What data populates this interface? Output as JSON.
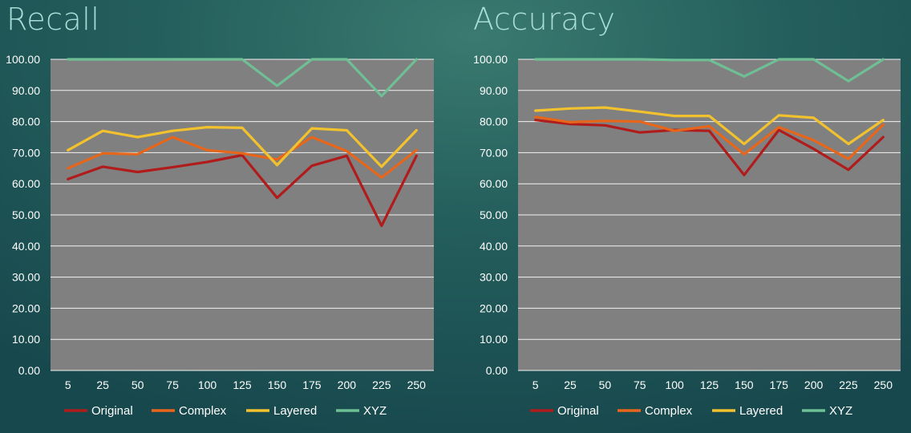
{
  "chart_data": [
    {
      "type": "line",
      "title": "Recall",
      "categories": [
        "5",
        "25",
        "50",
        "75",
        "100",
        "125",
        "150",
        "175",
        "200",
        "225",
        "250"
      ],
      "ylim": [
        0,
        100
      ],
      "yticks": [
        "0.00",
        "10.00",
        "20.00",
        "30.00",
        "40.00",
        "50.00",
        "60.00",
        "70.00",
        "80.00",
        "90.00",
        "100.00"
      ],
      "grid": true,
      "legend": "bottom",
      "series": [
        {
          "name": "Original",
          "color": "#b01c1c",
          "values": [
            61.5,
            65.5,
            63.8,
            65.3,
            67.0,
            69.2,
            55.5,
            65.8,
            69.0,
            46.5,
            69.0
          ]
        },
        {
          "name": "Complex",
          "color": "#e8661a",
          "values": [
            65.0,
            69.8,
            69.5,
            75.0,
            70.8,
            69.8,
            67.8,
            75.0,
            70.5,
            62.0,
            70.8
          ]
        },
        {
          "name": "Layered",
          "color": "#f2c12e",
          "values": [
            70.8,
            77.0,
            75.0,
            77.0,
            78.2,
            78.0,
            66.0,
            77.8,
            77.2,
            65.5,
            77.2
          ]
        },
        {
          "name": "XYZ",
          "color": "#6fbf95",
          "values": [
            100,
            100,
            100,
            100,
            100,
            100,
            91.5,
            100,
            100,
            88.2,
            100
          ]
        }
      ]
    },
    {
      "type": "line",
      "title": "Accuracy",
      "categories": [
        "5",
        "25",
        "50",
        "75",
        "100",
        "125",
        "150",
        "175",
        "200",
        "225",
        "250"
      ],
      "ylim": [
        0,
        100
      ],
      "yticks": [
        "0.00",
        "10.00",
        "20.00",
        "30.00",
        "40.00",
        "50.00",
        "60.00",
        "70.00",
        "80.00",
        "90.00",
        "100.00"
      ],
      "grid": true,
      "legend": "bottom",
      "series": [
        {
          "name": "Original",
          "color": "#b01c1c",
          "values": [
            80.5,
            79.2,
            78.8,
            76.5,
            77.3,
            77.0,
            62.8,
            77.3,
            71.2,
            64.5,
            75.0
          ]
        },
        {
          "name": "Complex",
          "color": "#e8661a",
          "values": [
            81.5,
            79.8,
            80.2,
            80.0,
            77.0,
            78.5,
            69.5,
            78.2,
            74.0,
            68.0,
            79.0
          ]
        },
        {
          "name": "Layered",
          "color": "#f2c12e",
          "values": [
            83.5,
            84.2,
            84.5,
            83.2,
            81.8,
            81.8,
            72.8,
            82.0,
            81.2,
            72.8,
            80.5
          ]
        },
        {
          "name": "XYZ",
          "color": "#6fbf95",
          "values": [
            100,
            100,
            100,
            100,
            99.8,
            99.8,
            94.5,
            100,
            100,
            93.0,
            100
          ]
        }
      ]
    }
  ]
}
